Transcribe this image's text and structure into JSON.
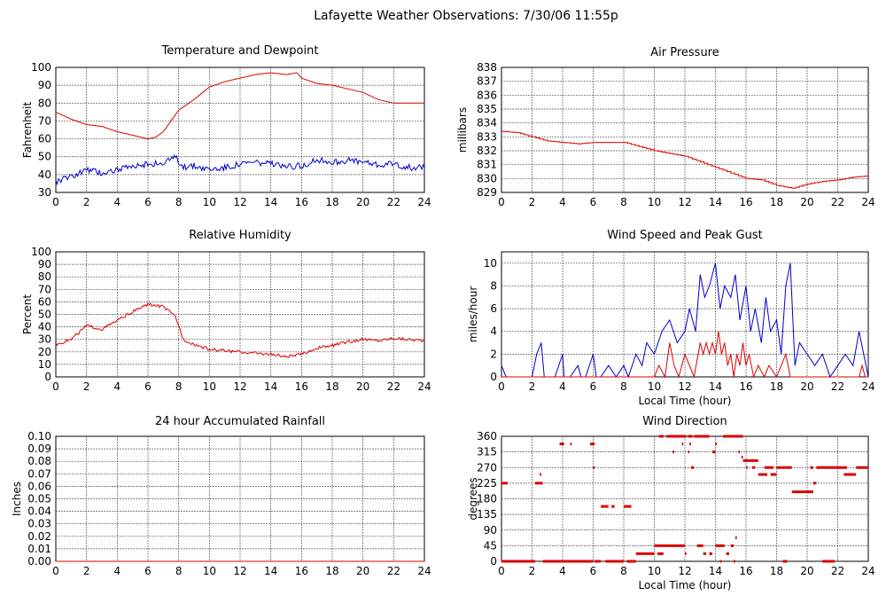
{
  "page_title": "Lafayette Weather Observations: 7/30/06 11:55p",
  "colors": {
    "red": "#dd0000",
    "blue": "#0000cc",
    "grid": "#555555",
    "frame": "#000000"
  },
  "chart_data": [
    {
      "id": "temp",
      "type": "line",
      "title": "Temperature and Dewpoint",
      "xlabel": "",
      "ylabel": "Fahrenheit",
      "xlim": [
        0,
        24
      ],
      "ylim": [
        30,
        100
      ],
      "xticks": [
        0,
        2,
        4,
        6,
        8,
        10,
        12,
        14,
        16,
        18,
        20,
        22,
        24
      ],
      "yticks": [
        30,
        40,
        50,
        60,
        70,
        80,
        90,
        100
      ],
      "grid": true,
      "series": [
        {
          "color": "#dd0000",
          "style": "line",
          "x": [
            0,
            1,
            2,
            3,
            4,
            5,
            6,
            6.5,
            7,
            7.5,
            8,
            9,
            10,
            11,
            12,
            13,
            14,
            15,
            15.7,
            16,
            17,
            18,
            19,
            20,
            21,
            22,
            23,
            24
          ],
          "y": [
            75,
            71,
            68,
            67,
            64,
            62,
            60,
            61,
            64,
            70,
            76,
            82,
            89,
            92,
            94,
            96,
            97,
            96,
            97,
            94,
            91,
            90,
            88,
            86,
            82,
            80,
            80,
            80
          ]
        },
        {
          "color": "#0000cc",
          "style": "line",
          "jitter": 1.8,
          "x": [
            0,
            1,
            2,
            3,
            4,
            5,
            6,
            7,
            7.8,
            8.3,
            9,
            10,
            11,
            12,
            13,
            14,
            15,
            16,
            17,
            18,
            19,
            20,
            21,
            22,
            23,
            24
          ],
          "y": [
            36,
            39,
            43,
            41,
            43,
            44,
            46,
            46,
            50,
            44,
            45,
            43,
            44,
            46,
            47,
            46,
            44,
            45,
            48,
            47,
            48,
            47,
            45,
            46,
            44,
            44
          ]
        }
      ]
    },
    {
      "id": "pressure",
      "type": "line",
      "title": "Air Pressure",
      "xlabel": "",
      "ylabel": "millibars",
      "xlim": [
        0,
        24
      ],
      "ylim": [
        829,
        838
      ],
      "xticks": [
        0,
        2,
        4,
        6,
        8,
        10,
        12,
        14,
        16,
        18,
        20,
        22,
        24
      ],
      "yticks": [
        829,
        830,
        831,
        832,
        833,
        834,
        835,
        836,
        837,
        838
      ],
      "grid": true,
      "series": [
        {
          "color": "#dd0000",
          "style": "step",
          "x": [
            0,
            1,
            2,
            3,
            4,
            5,
            6,
            7,
            8,
            9,
            10,
            11,
            12,
            13,
            14,
            15,
            16,
            17,
            18,
            19,
            20,
            21,
            22,
            23,
            24
          ],
          "y": [
            833.4,
            833.3,
            833.0,
            832.7,
            832.6,
            832.5,
            832.6,
            832.6,
            832.6,
            832.3,
            832.0,
            831.8,
            831.6,
            831.2,
            830.8,
            830.4,
            830.0,
            829.9,
            829.5,
            829.3,
            829.6,
            829.8,
            829.9,
            830.1,
            830.2
          ]
        }
      ]
    },
    {
      "id": "humidity",
      "type": "line",
      "title": "Relative Humidity",
      "xlabel": "",
      "ylabel": "Percent",
      "xlim": [
        0,
        24
      ],
      "ylim": [
        0,
        100
      ],
      "xticks": [
        0,
        2,
        4,
        6,
        8,
        10,
        12,
        14,
        16,
        18,
        20,
        22,
        24
      ],
      "yticks": [
        0,
        10,
        20,
        30,
        40,
        50,
        60,
        70,
        80,
        90,
        100
      ],
      "grid": true,
      "series": [
        {
          "color": "#dd0000",
          "style": "line",
          "jitter": 1.2,
          "x": [
            0,
            1,
            2,
            3,
            4,
            5,
            6,
            7,
            7.8,
            8.3,
            9,
            10,
            11,
            12,
            13,
            14,
            15,
            16,
            17,
            18,
            19,
            20,
            21,
            22,
            23,
            24
          ],
          "y": [
            26,
            30,
            41,
            38,
            45,
            52,
            58,
            56,
            48,
            30,
            26,
            22,
            21,
            20,
            19,
            18,
            16,
            18,
            23,
            25,
            28,
            30,
            29,
            31,
            30,
            29
          ]
        }
      ]
    },
    {
      "id": "wind",
      "type": "line",
      "title": "Wind Speed and Peak Gust",
      "xlabel": "Local Time (hour)",
      "ylabel": "miles/hour",
      "xlim": [
        0,
        24
      ],
      "ylim": [
        0,
        11
      ],
      "xticks": [
        0,
        2,
        4,
        6,
        8,
        10,
        12,
        14,
        16,
        18,
        20,
        22,
        24
      ],
      "yticks": [
        0,
        2,
        4,
        6,
        8,
        10
      ],
      "grid": true,
      "series": [
        {
          "color": "#0000cc",
          "style": "line",
          "x": [
            0,
            0.3,
            0.5,
            2,
            2.3,
            2.6,
            2.8,
            3.5,
            4,
            4.1,
            4.5,
            5,
            5.2,
            5.5,
            6,
            6.2,
            6.5,
            7,
            7.5,
            8,
            8.3,
            8.8,
            9.2,
            9.5,
            10,
            10.5,
            11,
            11.5,
            12,
            12.3,
            12.7,
            13,
            13.3,
            13.6,
            14,
            14.3,
            14.6,
            15,
            15.3,
            15.6,
            16,
            16.3,
            16.6,
            17,
            17.3,
            17.6,
            18,
            18.3,
            18.6,
            18.9,
            19.2,
            19.5,
            20,
            20.5,
            21,
            21.5,
            22,
            22.5,
            23,
            23.4,
            23.7,
            24
          ],
          "y": [
            1,
            0,
            0,
            0,
            2,
            3,
            0,
            0,
            2,
            0,
            0,
            1,
            0,
            0,
            2,
            0,
            0,
            1,
            0,
            1,
            0,
            2,
            1,
            3,
            2,
            4,
            5,
            3,
            4,
            6,
            4,
            9,
            7,
            8,
            10,
            6,
            8,
            7,
            9,
            5,
            8,
            4,
            6,
            3,
            7,
            4,
            5,
            2,
            8,
            10,
            1,
            3,
            2,
            1,
            2,
            0,
            1,
            2,
            1,
            4,
            2,
            0
          ]
        },
        {
          "color": "#dd0000",
          "style": "line",
          "x": [
            0,
            10,
            10.3,
            10.7,
            11,
            11.3,
            11.6,
            12,
            12.3,
            12.6,
            13,
            13.2,
            13.4,
            13.6,
            13.8,
            14,
            14.2,
            14.4,
            14.6,
            14.8,
            15,
            15.2,
            15.4,
            15.6,
            15.8,
            16,
            16.2,
            16.5,
            16.8,
            17.2,
            17.5,
            18,
            18.3,
            18.6,
            18.9,
            19.2,
            20,
            23.4,
            23.6,
            23.8,
            24
          ],
          "y": [
            0,
            0,
            1,
            0,
            3,
            1,
            0,
            2,
            1,
            0,
            3,
            2,
            3,
            2,
            3,
            2,
            4,
            2,
            3,
            1,
            2,
            0,
            2,
            1,
            3,
            1,
            2,
            0,
            1,
            0,
            1,
            0,
            1,
            2,
            0,
            0,
            0,
            0,
            1,
            0,
            0
          ]
        }
      ]
    },
    {
      "id": "rain",
      "type": "line",
      "title": "24 hour Accumulated Rainfall",
      "xlabel": "",
      "ylabel": "Inches",
      "xlim": [
        0,
        24
      ],
      "ylim": [
        0,
        0.1
      ],
      "xticks": [
        0,
        2,
        4,
        6,
        8,
        10,
        12,
        14,
        16,
        18,
        20,
        22,
        24
      ],
      "yticks": [
        "0.00",
        "0.01",
        "0.02",
        "0.03",
        "0.04",
        "0.05",
        "0.06",
        "0.07",
        "0.08",
        "0.09",
        "0.10"
      ],
      "grid": true,
      "series": [
        {
          "color": "#dd0000",
          "style": "line",
          "x": [
            0,
            24
          ],
          "y": [
            0,
            0
          ]
        }
      ]
    },
    {
      "id": "direction",
      "type": "scatter",
      "title": "Wind Direction",
      "xlabel": "Local Time (hour)",
      "ylabel": "degrees",
      "xlim": [
        0,
        24
      ],
      "ylim": [
        0,
        360
      ],
      "xticks": [
        0,
        2,
        4,
        6,
        8,
        10,
        12,
        14,
        16,
        18,
        20,
        22,
        24
      ],
      "yticks": [
        0,
        45,
        90,
        135,
        180,
        225,
        270,
        315,
        360
      ],
      "grid": true,
      "series": [
        {
          "color": "#dd0000",
          "style": "segments",
          "segments": [
            [
              0,
              0.4,
              225
            ],
            [
              0,
              2.2,
              0
            ],
            [
              2.2,
              2.7,
              225
            ],
            [
              2.5,
              2.6,
              250
            ],
            [
              2.7,
              4.0,
              0
            ],
            [
              3.8,
              4.1,
              338
            ],
            [
              4.5,
              4.6,
              338
            ],
            [
              4.0,
              6.0,
              0
            ],
            [
              5.8,
              6.1,
              338
            ],
            [
              6.0,
              6.1,
              270
            ],
            [
              6.1,
              6.5,
              0
            ],
            [
              6.5,
              7.0,
              158
            ],
            [
              7.2,
              7.4,
              158
            ],
            [
              6.8,
              8.0,
              0
            ],
            [
              8.0,
              8.5,
              158
            ],
            [
              8.2,
              8.8,
              0
            ],
            [
              8.8,
              10.0,
              22
            ],
            [
              10.0,
              11.0,
              45
            ],
            [
              10.2,
              10.6,
              22
            ],
            [
              10.3,
              10.6,
              360
            ],
            [
              10.8,
              11.6,
              360
            ],
            [
              11.0,
              12.0,
              45
            ],
            [
              11.2,
              11.3,
              315
            ],
            [
              11.6,
              12.1,
              360
            ],
            [
              11.8,
              11.9,
              338
            ],
            [
              12.0,
              12.1,
              22
            ],
            [
              12.2,
              12.3,
              315
            ],
            [
              12.2,
              12.5,
              360
            ],
            [
              12.3,
              12.4,
              338
            ],
            [
              12.4,
              12.6,
              270
            ],
            [
              12.6,
              13.0,
              360
            ],
            [
              12.8,
              13.2,
              45
            ],
            [
              13.0,
              13.6,
              360
            ],
            [
              13.2,
              13.4,
              22
            ],
            [
              13.6,
              13.8,
              22
            ],
            [
              13.8,
              14.0,
              315
            ],
            [
              14.0,
              14.6,
              45
            ],
            [
              14.0,
              14.1,
              338
            ],
            [
              14.3,
              14.4,
              0
            ],
            [
              14.5,
              15.0,
              360
            ],
            [
              14.7,
              14.9,
              22
            ],
            [
              15.0,
              15.2,
              45
            ],
            [
              15.0,
              15.8,
              360
            ],
            [
              15.3,
              15.4,
              68
            ],
            [
              15.2,
              15.3,
              0
            ],
            [
              15.5,
              15.6,
              315
            ],
            [
              15.7,
              15.8,
              300
            ],
            [
              15.8,
              16.2,
              290
            ],
            [
              16.0,
              16.1,
              270
            ],
            [
              16.2,
              16.8,
              290
            ],
            [
              16.4,
              16.6,
              270
            ],
            [
              16.8,
              17.4,
              250
            ],
            [
              17.2,
              17.8,
              270
            ],
            [
              17.6,
              18.0,
              250
            ],
            [
              18.0,
              18.6,
              270
            ],
            [
              18.4,
              18.7,
              0
            ],
            [
              18.6,
              19.0,
              270
            ],
            [
              19.0,
              20.4,
              200
            ],
            [
              20.2,
              20.4,
              270
            ],
            [
              20.4,
              20.6,
              225
            ],
            [
              20.6,
              21.6,
              270
            ],
            [
              21.0,
              21.8,
              0
            ],
            [
              21.6,
              22.0,
              270
            ],
            [
              22.0,
              22.6,
              270
            ],
            [
              22.4,
              23.2,
              250
            ],
            [
              23.2,
              24.0,
              270
            ]
          ]
        }
      ]
    }
  ]
}
